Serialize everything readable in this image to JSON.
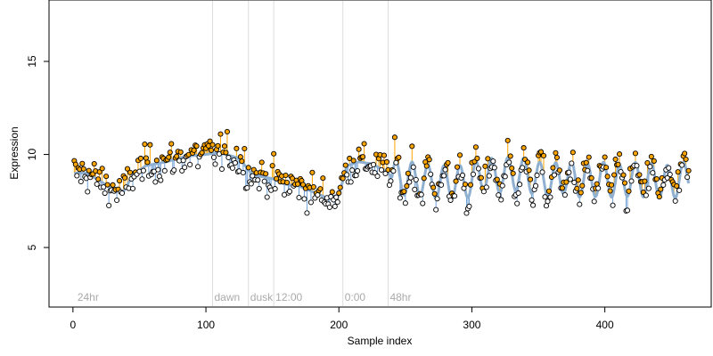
{
  "chart_data": {
    "type": "scatter",
    "title": "",
    "xlabel": "Sample index",
    "ylabel": "Expression",
    "xlim": [
      -18,
      480
    ],
    "ylim": [
      1.8,
      18.3
    ],
    "x_ticks": [
      0,
      100,
      200,
      300,
      400
    ],
    "y_ticks": [
      5,
      10,
      15
    ],
    "grid": false,
    "legend": "none",
    "colors": {
      "above_fill": "#ffa500",
      "below_fill": "#ffffff",
      "point_stroke": "#000000",
      "fit_line": "#8fb0d0",
      "stem_up": "#ffa500",
      "stem_down": "#6fa0d8",
      "region_line": "#dddddd",
      "region_text": "#aaaaaa"
    },
    "region_markers": [
      {
        "x": 2,
        "label": "24hr",
        "line": false
      },
      {
        "x": 105,
        "label": "dawn",
        "line": true
      },
      {
        "x": 132,
        "label": "dusk",
        "line": true
      },
      {
        "x": 151,
        "label": "12:00",
        "line": true
      },
      {
        "x": 203,
        "label": "0:00",
        "line": true
      },
      {
        "x": 237,
        "label": "48hr",
        "line": true
      }
    ],
    "trend_knots": [
      [
        0,
        9.0
      ],
      [
        10,
        9.0
      ],
      [
        20,
        8.6
      ],
      [
        30,
        8.1
      ],
      [
        38,
        8.0
      ],
      [
        45,
        8.9
      ],
      [
        55,
        9.4
      ],
      [
        70,
        9.6
      ],
      [
        85,
        9.9
      ],
      [
        100,
        10.0
      ],
      [
        110,
        10.1
      ],
      [
        125,
        9.8
      ],
      [
        135,
        8.9
      ],
      [
        150,
        8.7
      ],
      [
        160,
        8.4
      ],
      [
        170,
        8.3
      ],
      [
        180,
        8.0
      ],
      [
        190,
        7.7
      ],
      [
        200,
        7.8
      ],
      [
        206,
        9.4
      ],
      [
        215,
        9.6
      ],
      [
        225,
        9.5
      ],
      [
        235,
        9.1
      ],
      [
        240,
        8.8
      ],
      [
        250,
        8.7
      ],
      [
        260,
        8.7
      ],
      [
        270,
        8.5
      ],
      [
        280,
        8.5
      ],
      [
        290,
        8.5
      ],
      [
        300,
        8.6
      ],
      [
        310,
        9.0
      ],
      [
        320,
        8.8
      ],
      [
        330,
        9.0
      ],
      [
        340,
        8.9
      ],
      [
        350,
        8.7
      ],
      [
        360,
        8.6
      ],
      [
        370,
        8.8
      ],
      [
        380,
        8.6
      ],
      [
        390,
        8.6
      ],
      [
        400,
        8.7
      ],
      [
        410,
        8.5
      ],
      [
        420,
        8.7
      ],
      [
        430,
        8.6
      ],
      [
        440,
        8.6
      ],
      [
        450,
        8.5
      ],
      [
        460,
        8.7
      ],
      [
        463,
        8.9
      ]
    ],
    "wave_start": 240,
    "wave_amplitude": 0.9,
    "wave_period": 12,
    "n_points": 463,
    "point_spread": 0.7
  }
}
